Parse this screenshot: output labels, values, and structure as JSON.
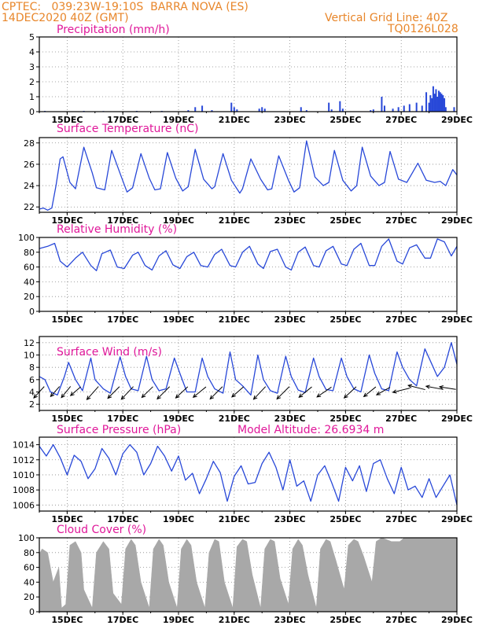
{
  "header": {
    "line1_left": "CPTEC:   039:23W-19:10S  BARRA NOVA (ES)",
    "line2_left": "14DEC2020 40Z (GMT)",
    "line1_right": "Vertical Grid Line: 40Z",
    "line2_right": "TQ0126L028"
  },
  "colors": {
    "header": "#e8862a",
    "title": "#e0189a",
    "series": "#2848d8",
    "cloud": "#a8a8a8",
    "grid": "#888888"
  },
  "x_axis": {
    "start_day": 14.0,
    "end_day": 29.0,
    "tick_days": [
      15,
      17,
      19,
      21,
      23,
      25,
      27,
      29
    ],
    "tick_labels": [
      "15DEC",
      "17DEC",
      "19DEC",
      "21DEC",
      "23DEC",
      "25DEC",
      "27DEC",
      "29DEC"
    ]
  },
  "panels": [
    {
      "id": "precip",
      "title": "Precipitation (mm/h)",
      "extra": "",
      "chart_data": {
        "type": "bar",
        "ylim": [
          0,
          5
        ],
        "yticks": [
          0,
          1,
          2,
          3,
          4,
          5
        ],
        "bars": [
          [
            14.2,
            0.05
          ],
          [
            15.6,
            0.05
          ],
          [
            16.3,
            0.04
          ],
          [
            17.5,
            0.05
          ],
          [
            18.4,
            0.05
          ],
          [
            19.35,
            0.1
          ],
          [
            19.6,
            0.3
          ],
          [
            19.85,
            0.4
          ],
          [
            20.2,
            0.1
          ],
          [
            20.9,
            0.6
          ],
          [
            21.0,
            0.3
          ],
          [
            21.1,
            0.15
          ],
          [
            21.9,
            0.2
          ],
          [
            22.0,
            0.3
          ],
          [
            22.1,
            0.2
          ],
          [
            23.4,
            0.3
          ],
          [
            23.6,
            0.1
          ],
          [
            24.4,
            0.6
          ],
          [
            24.5,
            0.15
          ],
          [
            24.8,
            0.7
          ],
          [
            24.9,
            0.2
          ],
          [
            25.9,
            0.1
          ],
          [
            26.0,
            0.15
          ],
          [
            26.3,
            1.0
          ],
          [
            26.4,
            0.4
          ],
          [
            26.7,
            0.2
          ],
          [
            26.9,
            0.3
          ],
          [
            27.1,
            0.4
          ],
          [
            27.3,
            0.5
          ],
          [
            27.55,
            0.6
          ],
          [
            27.75,
            0.4
          ],
          [
            27.9,
            1.3
          ],
          [
            28.0,
            0.6
          ],
          [
            28.05,
            1.1
          ],
          [
            28.1,
            0.9
          ],
          [
            28.15,
            1.7
          ],
          [
            28.2,
            1.2
          ],
          [
            28.25,
            1.5
          ],
          [
            28.3,
            1.0
          ],
          [
            28.35,
            1.4
          ],
          [
            28.4,
            1.3
          ],
          [
            28.45,
            1.2
          ],
          [
            28.5,
            1.1
          ],
          [
            28.55,
            0.9
          ],
          [
            28.6,
            0.3
          ],
          [
            28.9,
            0.3
          ]
        ]
      }
    },
    {
      "id": "temp",
      "title": "Surface Temperature (nC)",
      "extra": "",
      "chart_data": {
        "type": "line",
        "ylim": [
          21.5,
          28.5
        ],
        "yticks": [
          22,
          24,
          26,
          28
        ],
        "x": [
          14.0,
          14.15,
          14.3,
          14.45,
          14.6,
          14.75,
          14.85,
          15.1,
          15.3,
          15.6,
          15.9,
          16.05,
          16.35,
          16.6,
          16.95,
          17.15,
          17.35,
          17.65,
          17.95,
          18.15,
          18.35,
          18.6,
          18.9,
          19.15,
          19.35,
          19.6,
          19.9,
          20.2,
          20.3,
          20.6,
          20.9,
          21.2,
          21.3,
          21.6,
          21.95,
          22.2,
          22.35,
          22.6,
          22.95,
          23.15,
          23.35,
          23.6,
          23.9,
          24.2,
          24.4,
          24.6,
          24.9,
          25.2,
          25.4,
          25.6,
          25.9,
          26.2,
          26.4,
          26.6,
          26.9,
          27.2,
          27.4,
          27.6,
          27.9,
          28.2,
          28.4,
          28.6,
          28.85,
          29.0
        ],
        "y": [
          21.8,
          21.9,
          21.7,
          21.9,
          24.0,
          26.5,
          26.7,
          24.3,
          23.7,
          27.6,
          25.2,
          23.8,
          23.6,
          27.3,
          24.8,
          23.4,
          23.8,
          27.0,
          24.7,
          23.6,
          23.7,
          27.1,
          24.7,
          23.5,
          23.9,
          27.4,
          24.6,
          23.7,
          23.9,
          27.0,
          24.5,
          23.3,
          23.7,
          26.5,
          24.6,
          23.6,
          23.7,
          26.8,
          24.5,
          23.4,
          23.8,
          28.2,
          24.8,
          24.0,
          24.3,
          27.3,
          24.5,
          23.5,
          24.0,
          27.6,
          24.9,
          24.0,
          24.3,
          27.2,
          24.6,
          24.3,
          25.2,
          26.1,
          24.5,
          24.3,
          24.4,
          24.0,
          25.5,
          25.0
        ]
      }
    },
    {
      "id": "rh",
      "title": "Relative Humidity (%)",
      "extra": "",
      "chart_data": {
        "type": "line",
        "ylim": [
          0,
          100
        ],
        "yticks": [
          0,
          20,
          40,
          60,
          80,
          100
        ],
        "x": [
          14.0,
          14.3,
          14.55,
          14.75,
          15.0,
          15.3,
          15.55,
          15.85,
          16.05,
          16.25,
          16.55,
          16.8,
          17.05,
          17.35,
          17.55,
          17.8,
          18.05,
          18.3,
          18.55,
          18.8,
          19.05,
          19.3,
          19.55,
          19.8,
          20.05,
          20.3,
          20.55,
          20.85,
          21.05,
          21.3,
          21.55,
          21.85,
          22.05,
          22.3,
          22.55,
          22.85,
          23.05,
          23.3,
          23.55,
          23.85,
          24.05,
          24.3,
          24.55,
          24.85,
          25.05,
          25.3,
          25.55,
          25.85,
          26.05,
          26.3,
          26.55,
          26.85,
          27.05,
          27.3,
          27.55,
          27.85,
          28.05,
          28.3,
          28.55,
          28.8,
          29.0
        ],
        "y": [
          85,
          88,
          92,
          68,
          60,
          72,
          80,
          62,
          55,
          78,
          83,
          60,
          58,
          76,
          80,
          62,
          56,
          75,
          82,
          63,
          58,
          74,
          80,
          62,
          60,
          77,
          84,
          62,
          60,
          80,
          88,
          64,
          58,
          81,
          84,
          60,
          56,
          80,
          87,
          62,
          60,
          82,
          88,
          64,
          62,
          84,
          92,
          62,
          62,
          88,
          98,
          68,
          64,
          86,
          90,
          72,
          72,
          98,
          94,
          75,
          88
        ]
      }
    },
    {
      "id": "wind",
      "title": "Surface Wind (m/s)",
      "extra": "",
      "chart_data": {
        "type": "line",
        "ylim": [
          1,
          13
        ],
        "yticks": [
          2,
          4,
          6,
          8,
          10,
          12
        ],
        "x": [
          14.0,
          14.2,
          14.4,
          14.65,
          14.9,
          15.05,
          15.3,
          15.55,
          15.85,
          16.0,
          16.3,
          16.55,
          16.9,
          17.1,
          17.3,
          17.55,
          17.85,
          18.05,
          18.3,
          18.55,
          18.85,
          19.05,
          19.3,
          19.6,
          19.85,
          20.05,
          20.3,
          20.6,
          20.85,
          21.05,
          21.3,
          21.6,
          21.85,
          22.05,
          22.3,
          22.55,
          22.85,
          23.05,
          23.3,
          23.55,
          23.85,
          24.05,
          24.3,
          24.55,
          24.85,
          25.05,
          25.3,
          25.55,
          25.85,
          26.05,
          26.3,
          26.55,
          26.85,
          27.05,
          27.3,
          27.55,
          27.85,
          28.05,
          28.3,
          28.55,
          28.8,
          29.0
        ],
        "y": [
          6.5,
          6.0,
          4.0,
          3.5,
          6.5,
          8.8,
          6.0,
          4.2,
          9.5,
          6.0,
          4.5,
          3.8,
          9.7,
          6.5,
          4.5,
          4.2,
          9.8,
          6.0,
          4.2,
          4.5,
          9.5,
          7.0,
          4.0,
          4.0,
          9.5,
          6.5,
          4.5,
          3.8,
          10.5,
          6.0,
          5.0,
          3.5,
          10.0,
          6.0,
          4.2,
          3.8,
          9.8,
          6.5,
          4.3,
          3.9,
          9.5,
          6.5,
          4.4,
          4.2,
          9.5,
          6.5,
          4.5,
          4.0,
          10.0,
          7.0,
          4.5,
          4.2,
          10.5,
          8.0,
          6.0,
          5.0,
          11.0,
          9.0,
          6.5,
          8.0,
          12.0,
          8.5
        ],
        "arrows": [
          [
            14.1,
            3.5,
            0.6
          ],
          [
            14.65,
            3.6,
            0.5
          ],
          [
            15.05,
            3.9,
            0.55
          ],
          [
            15.4,
            2.8,
            0.5
          ],
          [
            16.05,
            3.6,
            0.7
          ],
          [
            16.8,
            3.2,
            0.65
          ],
          [
            17.3,
            3.4,
            0.7
          ],
          [
            18.0,
            3.1,
            0.6
          ],
          [
            18.6,
            3.2,
            0.7
          ],
          [
            19.25,
            3.0,
            0.65
          ],
          [
            19.9,
            2.6,
            0.65
          ],
          [
            20.5,
            3.2,
            0.7
          ],
          [
            21.25,
            2.8,
            0.6
          ],
          [
            22.05,
            3.4,
            0.7
          ],
          [
            22.9,
            3.2,
            0.7
          ],
          [
            23.7,
            2.6,
            0.65
          ],
          [
            24.4,
            2.2,
            0.7
          ],
          [
            25.3,
            3.0,
            0.65
          ],
          [
            26.0,
            2.6,
            0.6
          ],
          [
            26.5,
            1.8,
            0.6
          ],
          [
            27.2,
            0.8,
            0.7
          ],
          [
            27.75,
            -0.8,
            0.7
          ],
          [
            28.4,
            -0.6,
            0.7
          ],
          [
            28.85,
            -0.5,
            0.65
          ]
        ]
      }
    },
    {
      "id": "pres",
      "title": "Surface Pressure (hPa)",
      "extra": "Model Altitude: 26.6934 m",
      "chart_data": {
        "type": "line",
        "ylim": [
          1005.2,
          1015
        ],
        "yticks": [
          1006,
          1008,
          1010,
          1012,
          1014
        ],
        "x": [
          14.0,
          14.25,
          14.5,
          14.75,
          15.0,
          15.25,
          15.5,
          15.75,
          16.0,
          16.25,
          16.5,
          16.75,
          17.0,
          17.25,
          17.5,
          17.75,
          18.0,
          18.25,
          18.5,
          18.75,
          19.0,
          19.25,
          19.5,
          19.75,
          20.0,
          20.25,
          20.5,
          20.75,
          21.0,
          21.25,
          21.5,
          21.75,
          22.0,
          22.25,
          22.5,
          22.75,
          23.0,
          23.25,
          23.5,
          23.75,
          24.0,
          24.25,
          24.5,
          24.75,
          25.0,
          25.25,
          25.5,
          25.75,
          26.0,
          26.25,
          26.5,
          26.75,
          27.0,
          27.25,
          27.5,
          27.75,
          28.0,
          28.25,
          28.5,
          28.75,
          29.0
        ],
        "y": [
          1013.8,
          1012.5,
          1014.0,
          1012.3,
          1010.0,
          1012.6,
          1011.8,
          1009.5,
          1010.8,
          1013.5,
          1012.2,
          1010.0,
          1012.8,
          1014.0,
          1013.0,
          1010.0,
          1011.5,
          1013.8,
          1012.5,
          1010.5,
          1012.5,
          1009.3,
          1010.2,
          1007.5,
          1009.5,
          1011.8,
          1010.3,
          1006.5,
          1009.8,
          1011.2,
          1008.8,
          1009.0,
          1011.5,
          1013.0,
          1011.0,
          1008.0,
          1012.0,
          1008.5,
          1009.2,
          1006.5,
          1010.0,
          1011.2,
          1009.0,
          1006.5,
          1011.0,
          1009.2,
          1011.2,
          1007.8,
          1011.5,
          1012.0,
          1009.5,
          1007.5,
          1011.0,
          1008.0,
          1008.5,
          1007.0,
          1009.5,
          1007.0,
          1008.5,
          1010.0,
          1006.0
        ]
      }
    },
    {
      "id": "cloud",
      "title": "Cloud Cover (%)",
      "extra": "",
      "chart_data": {
        "type": "area",
        "ylim": [
          0,
          100
        ],
        "yticks": [
          0,
          20,
          40,
          60,
          80,
          100
        ],
        "x": [
          14.0,
          14.1,
          14.3,
          14.5,
          14.7,
          14.8,
          14.95,
          15.1,
          15.3,
          15.5,
          15.6,
          15.9,
          16.05,
          16.3,
          16.5,
          16.65,
          16.95,
          17.1,
          17.3,
          17.45,
          17.65,
          17.95,
          18.1,
          18.3,
          18.45,
          18.65,
          18.95,
          19.1,
          19.3,
          19.45,
          19.65,
          19.95,
          20.1,
          20.3,
          20.45,
          20.65,
          20.95,
          21.1,
          21.3,
          21.45,
          21.65,
          21.95,
          22.1,
          22.3,
          22.45,
          22.65,
          22.95,
          23.1,
          23.3,
          23.45,
          23.65,
          23.95,
          24.1,
          24.3,
          24.45,
          24.65,
          24.95,
          25.1,
          25.3,
          25.45,
          25.65,
          25.95,
          26.1,
          26.3,
          26.45,
          26.65,
          26.95,
          27.1,
          27.5,
          28.0,
          28.5,
          29.0
        ],
        "y": [
          78,
          85,
          80,
          40,
          60,
          5,
          10,
          90,
          95,
          80,
          30,
          5,
          80,
          95,
          85,
          25,
          10,
          85,
          98,
          90,
          40,
          5,
          85,
          98,
          90,
          40,
          5,
          85,
          98,
          90,
          40,
          5,
          80,
          98,
          95,
          40,
          5,
          88,
          98,
          95,
          50,
          5,
          85,
          98,
          95,
          45,
          10,
          85,
          98,
          90,
          50,
          5,
          85,
          98,
          95,
          70,
          30,
          90,
          98,
          95,
          75,
          40,
          95,
          100,
          98,
          95,
          95,
          100,
          100,
          100,
          100,
          100
        ]
      }
    }
  ]
}
